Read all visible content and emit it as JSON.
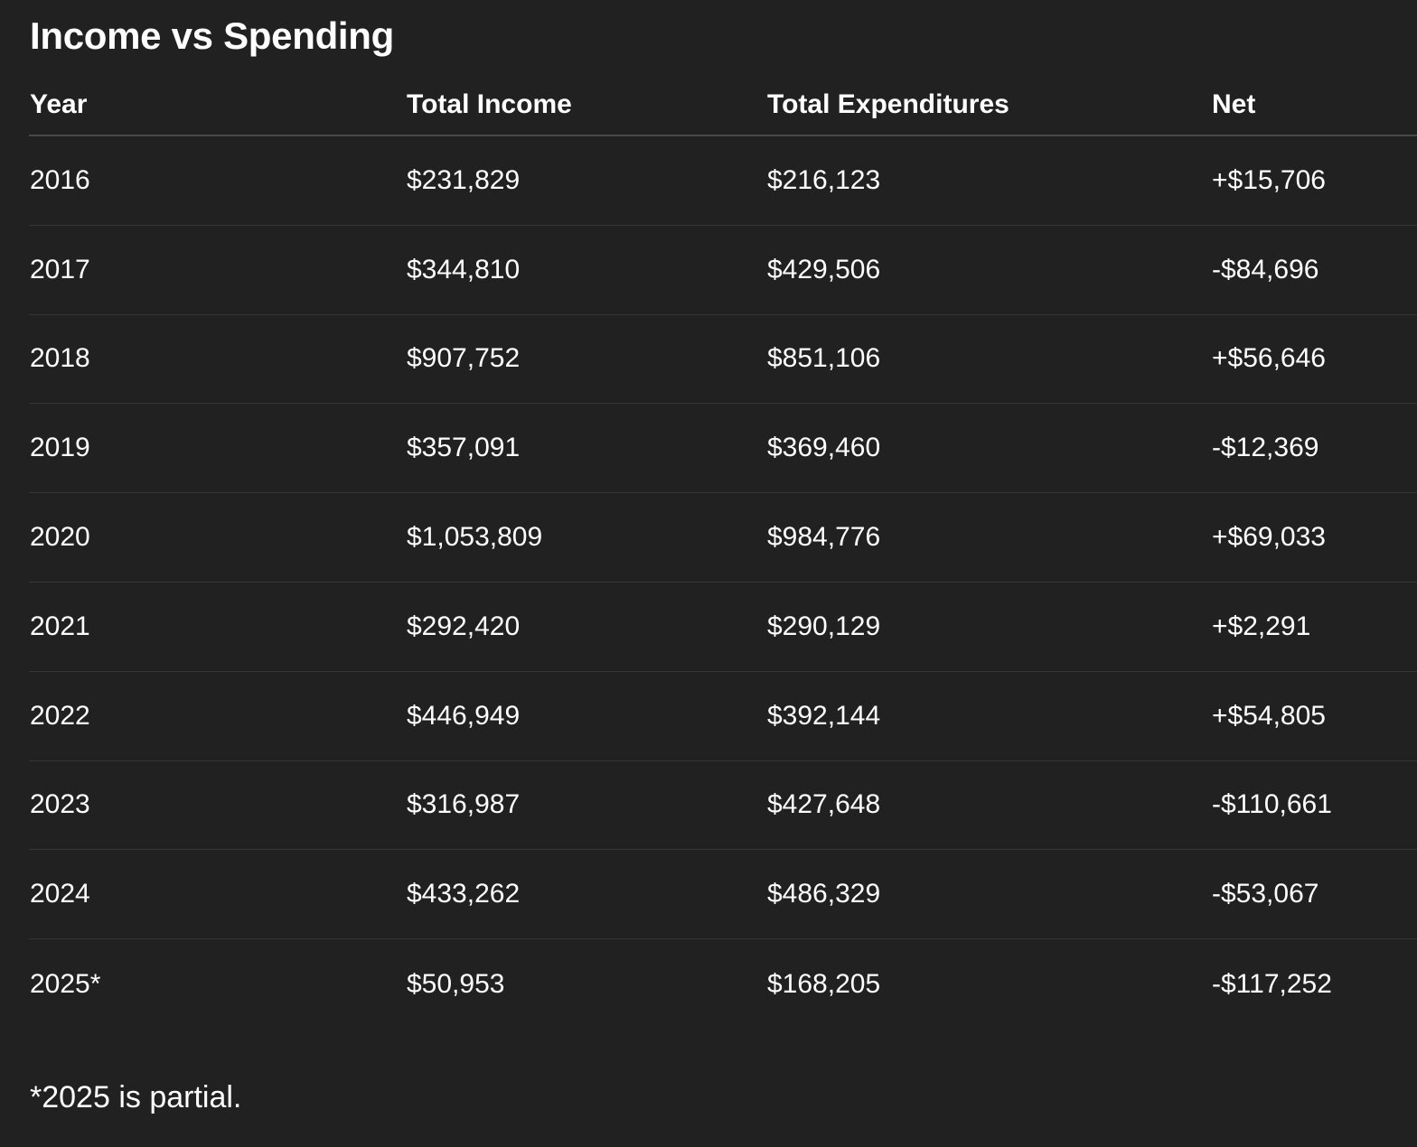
{
  "title": "Income vs Spending",
  "table": {
    "columns": [
      "Year",
      "Total Income",
      "Total Expenditures",
      "Net"
    ],
    "rows": [
      [
        "2016",
        "$231,829",
        "$216,123",
        "+$15,706"
      ],
      [
        "2017",
        "$344,810",
        "$429,506",
        "-$84,696"
      ],
      [
        "2018",
        "$907,752",
        "$851,106",
        "+$56,646"
      ],
      [
        "2019",
        "$357,091",
        "$369,460",
        "-$12,369"
      ],
      [
        "2020",
        "$1,053,809",
        "$984,776",
        "+$69,033"
      ],
      [
        "2021",
        "$292,420",
        "$290,129",
        "+$2,291"
      ],
      [
        "2022",
        "$446,949",
        "$392,144",
        "+$54,805"
      ],
      [
        "2023",
        "$316,987",
        "$427,648",
        "-$110,661"
      ],
      [
        "2024",
        "$433,262",
        "$486,329",
        "-$53,067"
      ],
      [
        "2025*",
        "$50,953",
        "$168,205",
        "-$117,252"
      ]
    ]
  },
  "footnote": "*2025 is partial."
}
